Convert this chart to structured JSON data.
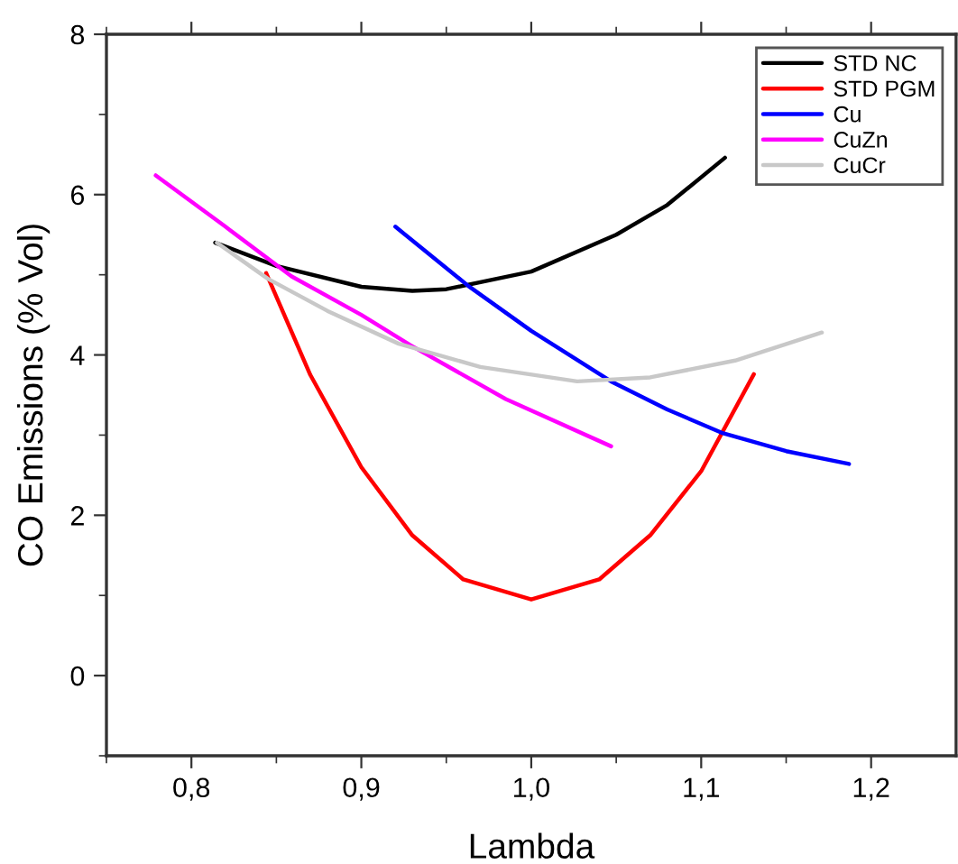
{
  "chart_data": {
    "type": "line",
    "xlabel": "Lambda",
    "ylabel": "CO Emissions (% Vol)",
    "xlim": [
      0.75,
      1.25
    ],
    "ylim": [
      -1,
      8
    ],
    "xticks": [
      {
        "value": 0.75,
        "label": null
      },
      {
        "value": 0.8,
        "label": "0,8"
      },
      {
        "value": 0.85,
        "label": null
      },
      {
        "value": 0.9,
        "label": "0,9"
      },
      {
        "value": 0.95,
        "label": null
      },
      {
        "value": 1.0,
        "label": "1,0"
      },
      {
        "value": 1.05,
        "label": null
      },
      {
        "value": 1.1,
        "label": "1,1"
      },
      {
        "value": 1.15,
        "label": null
      },
      {
        "value": 1.2,
        "label": "1,2"
      }
    ],
    "yticks": [
      {
        "value": -1,
        "label": null
      },
      0,
      {
        "value": 1,
        "label": null
      },
      2,
      {
        "value": 3,
        "label": null
      },
      4,
      {
        "value": 5,
        "label": null
      },
      6,
      {
        "value": 7,
        "label": null
      },
      8
    ],
    "grid": false,
    "legend": "top right",
    "marker": "none",
    "line_style": "solid",
    "series": [
      {
        "name": "STD NC",
        "color": "#000000",
        "x": [
          0.814,
          0.85,
          0.9,
          0.93,
          0.95,
          1.0,
          1.05,
          1.08,
          1.114
        ],
        "values": [
          5.4,
          5.11,
          4.85,
          4.8,
          4.82,
          5.04,
          5.5,
          5.87,
          6.46
        ]
      },
      {
        "name": "STD PGM",
        "color": "#ff0000",
        "x": [
          0.844,
          0.87,
          0.9,
          0.93,
          0.96,
          1.0,
          1.04,
          1.07,
          1.1,
          1.131
        ],
        "values": [
          5.02,
          3.75,
          2.6,
          1.75,
          1.2,
          0.95,
          1.2,
          1.75,
          2.55,
          3.76
        ]
      },
      {
        "name": "Cu",
        "color": "#0000ff",
        "x": [
          0.92,
          0.963,
          1.0,
          1.047,
          1.08,
          1.112,
          1.15,
          1.187
        ],
        "values": [
          5.6,
          4.86,
          4.3,
          3.67,
          3.32,
          3.03,
          2.8,
          2.64
        ]
      },
      {
        "name": "CuZn",
        "color": "#ff00ff",
        "x": [
          0.779,
          0.82,
          0.859,
          0.9,
          0.929,
          0.985,
          1.047
        ],
        "values": [
          6.24,
          5.6,
          4.98,
          4.5,
          4.12,
          3.45,
          2.86
        ]
      },
      {
        "name": "CuCr",
        "color": "#c8c8c8",
        "x": [
          0.815,
          0.845,
          0.88,
          0.922,
          0.97,
          1.027,
          1.07,
          1.12,
          1.171
        ],
        "values": [
          5.4,
          4.95,
          4.55,
          4.14,
          3.85,
          3.67,
          3.72,
          3.93,
          4.28
        ]
      }
    ]
  }
}
